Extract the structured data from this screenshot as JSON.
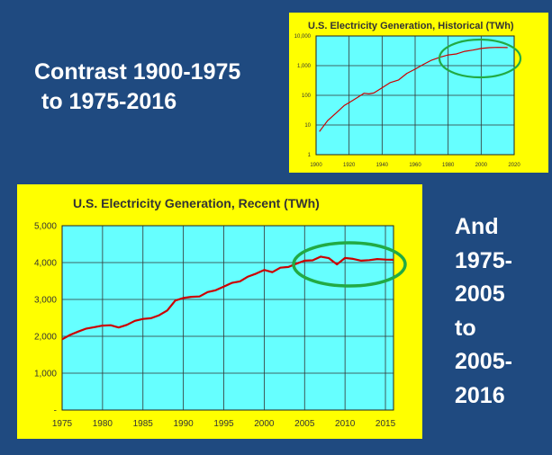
{
  "slide": {
    "heading_line1": "Contrast 1900-1975",
    "heading_line2": "to 1975-2016",
    "side_note": [
      "And",
      "1975-",
      "2005",
      "to",
      "2005-",
      "2016"
    ]
  },
  "colors": {
    "background": "#1f4a80",
    "panel": "#ffff00",
    "plot_area": "#66ffff",
    "series_line": "#cc0000",
    "highlight_ellipse": "#22aa44",
    "text": "#ffffff"
  },
  "chart_data": [
    {
      "type": "line",
      "title": "U.S. Electricity Generation, Historical (TWh)",
      "xlabel": "",
      "ylabel": "",
      "yscale": "log",
      "xlim": [
        1900,
        2020
      ],
      "ylim": [
        1,
        10000
      ],
      "x_ticks": [
        "1900",
        "1920",
        "1940",
        "1960",
        "1980",
        "2000",
        "2020"
      ],
      "y_ticks": [
        "1",
        "10",
        "100",
        "1,000",
        "10,000"
      ],
      "grid": true,
      "series": [
        {
          "x": [
            1902,
            1907,
            1912,
            1917,
            1920,
            1925,
            1929,
            1932,
            1935,
            1940,
            1945,
            1950,
            1955,
            1960,
            1965,
            1970,
            1975,
            1980,
            1985,
            1990,
            1995,
            2000,
            2005,
            2010,
            2016
          ],
          "values": [
            6,
            14,
            25,
            45,
            57,
            84,
            117,
            112,
            120,
            180,
            270,
            330,
            550,
            760,
            1100,
            1530,
            1920,
            2290,
            2470,
            3040,
            3350,
            3800,
            4050,
            4125,
            4075
          ]
        }
      ],
      "highlight": {
        "shape": "ellipse",
        "range_x": [
          1975,
          2020
        ]
      }
    },
    {
      "type": "line",
      "title": "U.S. Electricity Generation, Recent (TWh)",
      "xlabel": "",
      "ylabel": "",
      "xlim": [
        1975,
        2016
      ],
      "ylim": [
        0,
        5000
      ],
      "x_ticks": [
        "1975",
        "1980",
        "1985",
        "1990",
        "1995",
        "2000",
        "2005",
        "2010",
        "2015"
      ],
      "y_ticks": [
        "-",
        "1,000",
        "2,000",
        "3,000",
        "4,000",
        "5,000"
      ],
      "grid": true,
      "series": [
        {
          "x": [
            1975,
            1976,
            1977,
            1978,
            1979,
            1980,
            1981,
            1982,
            1983,
            1984,
            1985,
            1986,
            1987,
            1988,
            1989,
            1990,
            1991,
            1992,
            1993,
            1994,
            1995,
            1996,
            1997,
            1998,
            1999,
            2000,
            2001,
            2002,
            2003,
            2004,
            2005,
            2006,
            2007,
            2008,
            2009,
            2010,
            2011,
            2012,
            2013,
            2014,
            2015,
            2016
          ],
          "values": [
            1920,
            2040,
            2130,
            2210,
            2250,
            2290,
            2300,
            2240,
            2310,
            2420,
            2470,
            2490,
            2570,
            2700,
            2970,
            3040,
            3070,
            3080,
            3200,
            3250,
            3350,
            3450,
            3490,
            3620,
            3700,
            3800,
            3740,
            3860,
            3880,
            3970,
            4050,
            4060,
            4160,
            4120,
            3950,
            4125,
            4100,
            4050,
            4065,
            4095,
            4080,
            4075
          ]
        }
      ],
      "highlight": {
        "shape": "ellipse",
        "range_x": [
          2004,
          2016
        ]
      }
    }
  ]
}
